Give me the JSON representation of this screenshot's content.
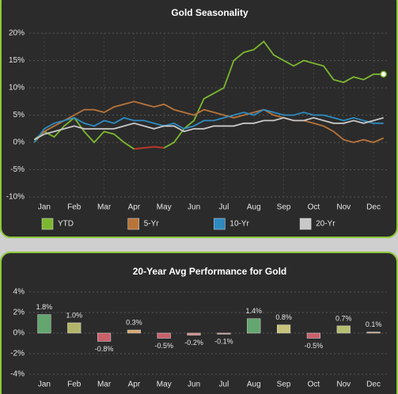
{
  "chart_data": [
    {
      "type": "line",
      "title": "Gold Seasonality",
      "categories": [
        null,
        "Jan",
        null,
        null,
        "Feb",
        null,
        null,
        "Mar",
        null,
        null,
        "Apr",
        null,
        null,
        "May",
        null,
        null,
        "Jun",
        null,
        null,
        "Jul",
        null,
        null,
        "Aug",
        null,
        null,
        "Sep",
        null,
        null,
        "Oct",
        null,
        null,
        "Nov",
        null,
        null,
        "Dec",
        null
      ],
      "series": [
        {
          "name": "YTD",
          "color": "#7cb82f",
          "negative_color": "#b5332a",
          "end_marker": true,
          "values": [
            0.5,
            2,
            1,
            3,
            4.5,
            2,
            0,
            2,
            1.5,
            0,
            -1.2,
            -1,
            -0.8,
            -1,
            0,
            2.5,
            4,
            8,
            9,
            10,
            15,
            16.5,
            17,
            18.5,
            16,
            15,
            14,
            15,
            14.5,
            14,
            11.5,
            11,
            12,
            11.5,
            12.5,
            12.5
          ]
        },
        {
          "name": "5-Yr",
          "color": "#b9743a",
          "values": [
            0,
            2,
            3,
            4,
            5,
            6,
            6,
            5.5,
            6.5,
            7,
            7.5,
            7,
            6.5,
            7,
            6,
            5.5,
            5,
            6,
            5.5,
            5,
            4.5,
            5,
            5.5,
            6,
            5,
            4.5,
            4,
            4,
            3.5,
            3,
            2,
            0.5,
            0,
            0.5,
            0,
            0.8
          ]
        },
        {
          "name": "10-Yr",
          "color": "#2e8bc0",
          "values": [
            0,
            2.5,
            3.5,
            4,
            4.5,
            3.5,
            3,
            4,
            3.5,
            4.5,
            4,
            4,
            3.5,
            3,
            3.5,
            2.5,
            3,
            4,
            4,
            4.5,
            5,
            5.5,
            5,
            6,
            5.5,
            5,
            5,
            5.5,
            5,
            5,
            4.5,
            4,
            4.5,
            4,
            3.5,
            3.5
          ]
        },
        {
          "name": "20-Yr",
          "color": "#c8c8c8",
          "values": [
            0.5,
            1.5,
            2,
            2.5,
            3,
            2.5,
            2.5,
            2.5,
            2.5,
            3,
            3.5,
            3,
            2.5,
            3,
            3,
            2,
            2.5,
            2.5,
            3,
            3,
            3,
            3.5,
            3.5,
            4,
            4,
            4.5,
            4,
            4,
            4.5,
            4,
            3.5,
            3.5,
            4,
            3.5,
            4,
            4.5
          ]
        }
      ],
      "ylim": [
        -10,
        20
      ],
      "yticks": [
        {
          "value": -10,
          "label": "-10%"
        },
        {
          "value": -5,
          "label": "-5%"
        },
        {
          "value": 0,
          "label": "0%"
        },
        {
          "value": 5,
          "label": "5%"
        },
        {
          "value": 10,
          "label": "10%"
        },
        {
          "value": 15,
          "label": "15%"
        },
        {
          "value": 20,
          "label": "20%"
        }
      ],
      "grid": true,
      "legend": "bottom"
    },
    {
      "type": "bar",
      "title": "20-Year Avg Performance for Gold",
      "categories": [
        "Jan",
        "Feb",
        "Mar",
        "Apr",
        "May",
        "Jun",
        "Jul",
        "Aug",
        "Sep",
        "Oct",
        "Nov",
        "Dec"
      ],
      "values": [
        1.8,
        1.0,
        -0.8,
        0.3,
        -0.5,
        -0.2,
        -0.1,
        1.4,
        0.8,
        -0.5,
        0.7,
        0.1
      ],
      "value_labels": [
        "1.8%",
        "1.0%",
        "-0.8%",
        "0.3%",
        "-0.5%",
        "-0.2%",
        "-0.1%",
        "1.4%",
        "0.8%",
        "-0.5%",
        "0.7%",
        "0.1%"
      ],
      "colors": [
        "#63a66f",
        "#b3b56a",
        "#c9606a",
        "#d8a66e",
        "#c9606a",
        "#d48582",
        "#d89a88",
        "#63a66f",
        "#c7c27a",
        "#c9606a",
        "#b5bd70",
        "#d8ad8a"
      ],
      "ylim": [
        -4,
        4
      ],
      "yticks": [
        {
          "value": -4,
          "label": "-4%"
        },
        {
          "value": -2,
          "label": "-2%"
        },
        {
          "value": 0,
          "label": "0%"
        },
        {
          "value": 2,
          "label": "2%"
        },
        {
          "value": 4,
          "label": "4%"
        }
      ],
      "grid": true
    }
  ]
}
